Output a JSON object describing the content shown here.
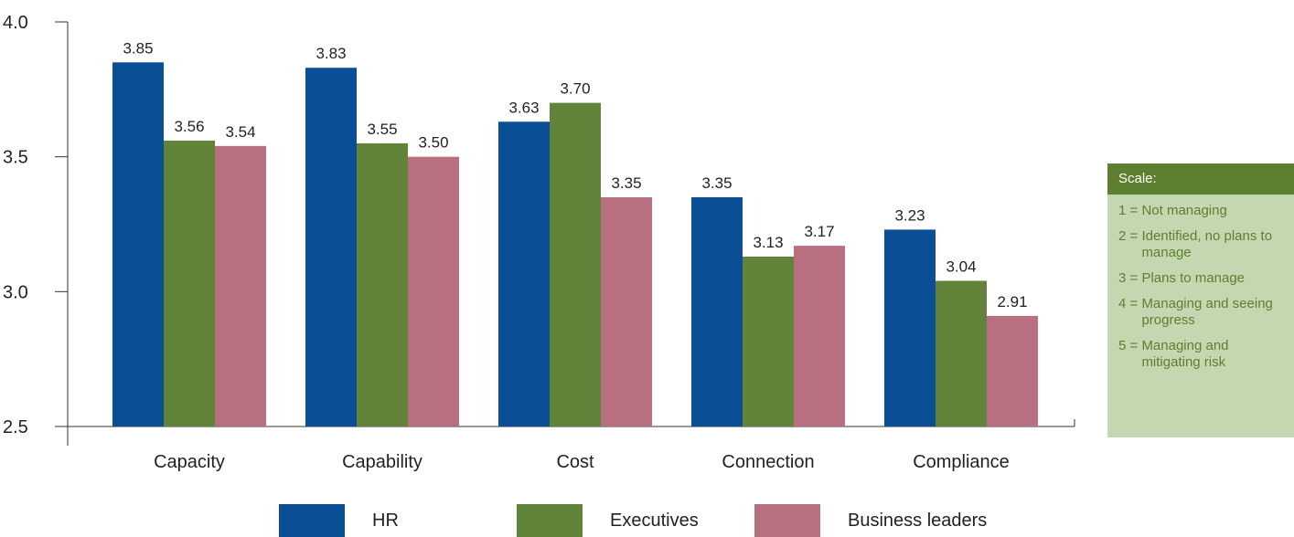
{
  "chart_data": {
    "type": "bar",
    "categories": [
      "Capacity",
      "Capability",
      "Cost",
      "Connection",
      "Compliance"
    ],
    "series": [
      {
        "name": "HR",
        "color": "#0a4f96",
        "values": [
          3.85,
          3.83,
          3.63,
          3.35,
          3.23
        ],
        "labels": [
          "3.85",
          "3.83",
          "3.63",
          "3.35",
          "3.23"
        ]
      },
      {
        "name": "Executives",
        "color": "#62833a",
        "values": [
          3.56,
          3.55,
          3.7,
          3.13,
          3.04
        ],
        "labels": [
          "3.56",
          "3.55",
          "3.70",
          "3.13",
          "3.04"
        ]
      },
      {
        "name": "Business leaders",
        "color": "#b87080",
        "values": [
          3.54,
          3.5,
          3.35,
          3.17,
          2.91
        ],
        "labels": [
          "3.54",
          "3.50",
          "3.35",
          "3.17",
          "2.91"
        ]
      }
    ],
    "ylim": [
      2.5,
      4.0
    ],
    "yticks": [
      2.5,
      3.0,
      3.5,
      4.0
    ],
    "ytick_labels": [
      "2.5",
      "3.0",
      "3.5",
      "4.0"
    ],
    "title": "",
    "xlabel": "",
    "ylabel": "",
    "grid": false,
    "legend_position": "bottom"
  },
  "scale": {
    "title": "Scale:",
    "items": [
      {
        "num": "1 = ",
        "text": "Not managing"
      },
      {
        "num": "2 = ",
        "text": "Identified, no plans to manage"
      },
      {
        "num": "3 = ",
        "text": "Plans to manage"
      },
      {
        "num": "4 = ",
        "text": "Managing and seeing progress"
      },
      {
        "num": "5 = ",
        "text": "Managing and mitigating risk"
      }
    ],
    "header_color": "#5d7f2f",
    "box_color": "#c5d7b1"
  }
}
